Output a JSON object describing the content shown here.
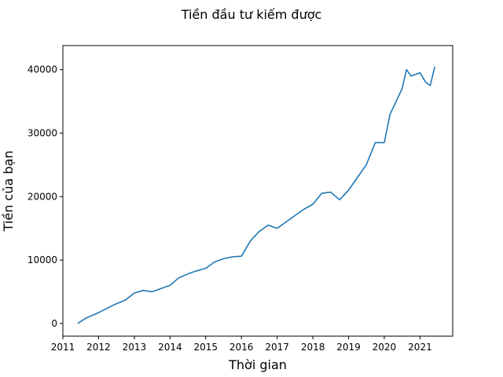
{
  "chart_data": {
    "type": "line",
    "title": "Tiền đầu tư kiếm được",
    "xlabel": "Thời gian",
    "ylabel": "Tiền của bạn",
    "xlim": [
      "2011-01-01",
      "2021-12-01"
    ],
    "ylim": [
      -2000,
      43800
    ],
    "xticks": [
      "2011",
      "2012",
      "2013",
      "2014",
      "2015",
      "2016",
      "2017",
      "2018",
      "2019",
      "2020",
      "2021"
    ],
    "yticks": [
      0,
      10000,
      20000,
      30000,
      40000
    ],
    "grid": false,
    "series": [
      {
        "color": "#1f77b4",
        "x": [
          "2011-06-01",
          "2011-09-01",
          "2012-01-01",
          "2012-06-01",
          "2012-10-01",
          "2013-01-01",
          "2013-04-01",
          "2013-07-01",
          "2013-10-01",
          "2014-01-01",
          "2014-04-01",
          "2014-07-01",
          "2014-10-01",
          "2015-01-01",
          "2015-04-01",
          "2015-07-01",
          "2015-10-01",
          "2016-01-01",
          "2016-04-01",
          "2016-07-01",
          "2016-10-01",
          "2017-01-01",
          "2017-04-01",
          "2017-07-01",
          "2017-10-01",
          "2018-01-01",
          "2018-04-01",
          "2018-07-01",
          "2018-10-01",
          "2019-01-01",
          "2019-04-01",
          "2019-07-01",
          "2019-10-01",
          "2020-01-01",
          "2020-03-01",
          "2020-05-01",
          "2020-07-01",
          "2020-08-15",
          "2020-10-01",
          "2021-01-01",
          "2021-03-01",
          "2021-04-15",
          "2021-06-01"
        ],
        "values": [
          0,
          900,
          1700,
          2900,
          3700,
          4800,
          5200,
          5000,
          5500,
          6000,
          7200,
          7800,
          8300,
          8700,
          9700,
          10200,
          10500,
          10600,
          13000,
          14500,
          15500,
          15000,
          16000,
          17000,
          18000,
          18800,
          20500,
          20700,
          19500,
          21000,
          23000,
          25000,
          28500,
          28500,
          33000,
          35000,
          37000,
          40000,
          39000,
          39500,
          38000,
          37500,
          40500
        ]
      }
    ]
  }
}
